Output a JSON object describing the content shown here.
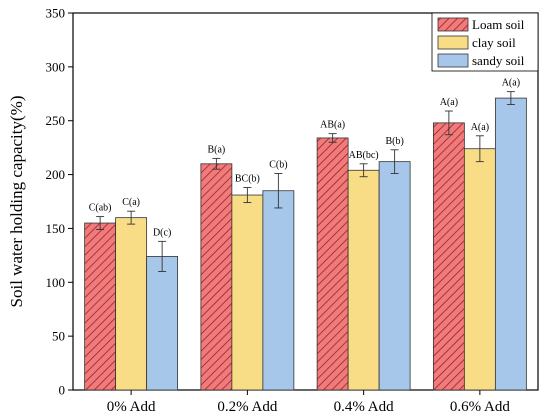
{
  "chart_data": {
    "type": "bar",
    "categories": [
      "0% Add",
      "0.2% Add",
      "0.4% Add",
      "0.6% Add"
    ],
    "series": [
      {
        "name": "Loam soil",
        "color": "#e86b6b",
        "pattern": "hatch",
        "values": [
          155,
          210,
          234,
          248
        ],
        "errors": [
          6,
          5,
          4,
          11
        ],
        "labels": [
          "C(ab)",
          "B(a)",
          "AB(a)",
          "A(a)"
        ]
      },
      {
        "name": "clay soil",
        "color": "#f9dc86",
        "pattern": "solid",
        "values": [
          160,
          181,
          204,
          224
        ],
        "errors": [
          6,
          7,
          6,
          12
        ],
        "labels": [
          "C(a)",
          "BC(b)",
          "AB(bc)",
          "A(a)"
        ]
      },
      {
        "name": "sandy soil",
        "color": "#a6c7ea",
        "pattern": "solid",
        "values": [
          124,
          185,
          212,
          271
        ],
        "errors": [
          14,
          16,
          11,
          6
        ],
        "labels": [
          "D(c)",
          "C(b)",
          "B(b)",
          "A(a)"
        ]
      }
    ],
    "xlabel": "",
    "ylabel": "Soil water holding capacity(%)",
    "ylim": [
      0,
      350
    ],
    "yticks": [
      0,
      50,
      100,
      150,
      200,
      250,
      300,
      350
    ],
    "legend": "top-right",
    "grid": false
  }
}
